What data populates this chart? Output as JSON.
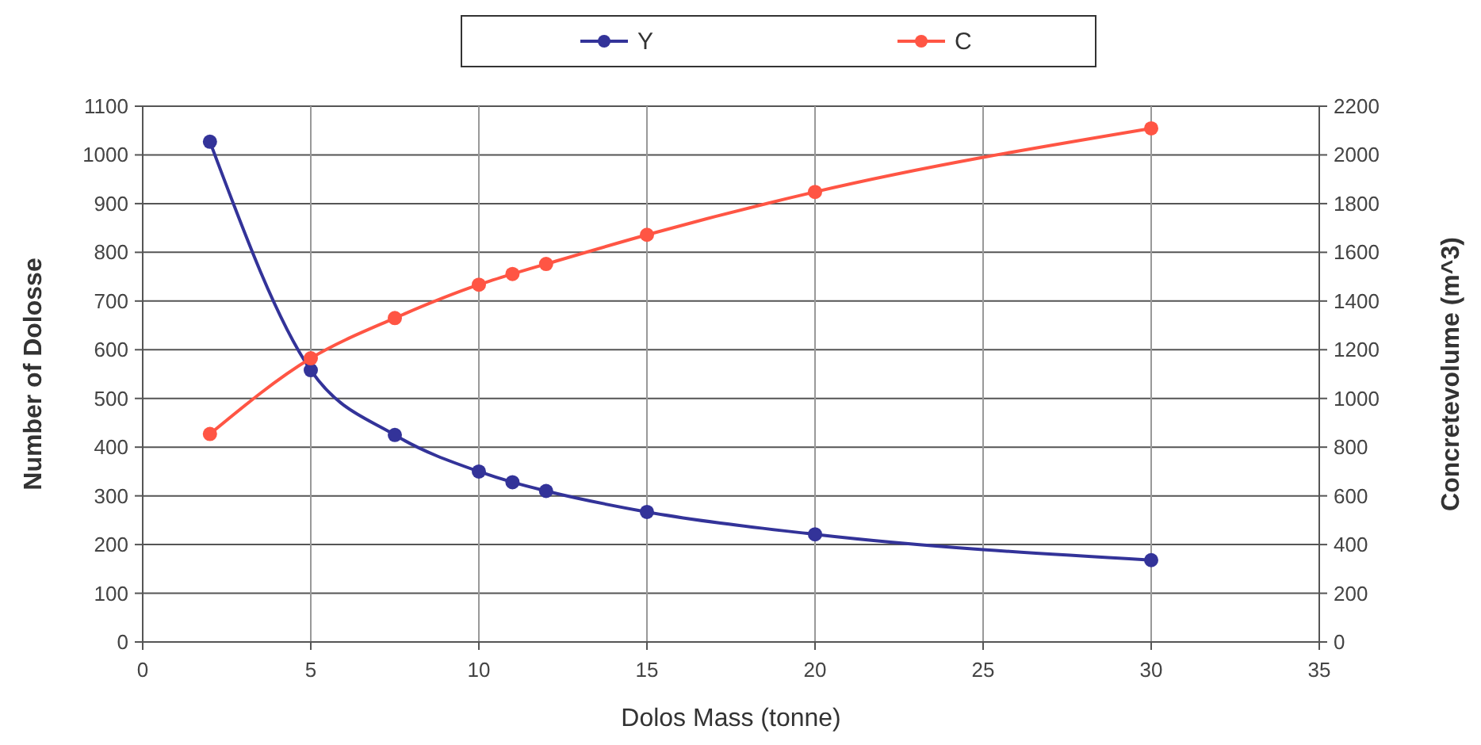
{
  "chart_data": {
    "type": "line",
    "xlabel": "Dolos Mass (tonne)",
    "ylabel": "Number of Dolosse",
    "y2label": "Concretevolume (m^3)",
    "x": [
      2,
      5,
      7.5,
      10,
      11,
      12,
      15,
      20,
      30
    ],
    "series": [
      {
        "name": "Y",
        "color": "#333399",
        "values": [
          1027,
          558,
          425,
          350,
          328,
          310,
          267,
          221,
          168
        ]
      },
      {
        "name": "C",
        "color": "#ff5544",
        "axis": "y2",
        "values": [
          854,
          1165,
          1330,
          1467,
          1511,
          1552,
          1672,
          1848,
          2109
        ]
      }
    ],
    "xlim": [
      0,
      35
    ],
    "xticks": [
      0,
      5,
      10,
      15,
      20,
      25,
      30,
      35
    ],
    "ylim": [
      0,
      1100
    ],
    "yticks": [
      0,
      100,
      200,
      300,
      400,
      500,
      600,
      700,
      800,
      900,
      1000,
      1100
    ],
    "y2lim": [
      0,
      2200
    ],
    "y2ticks": [
      0,
      200,
      400,
      600,
      800,
      1000,
      1200,
      1400,
      1600,
      1800,
      2000,
      2200
    ],
    "grid": true,
    "legend": "top",
    "marker": "circle",
    "line_style": "solid"
  }
}
